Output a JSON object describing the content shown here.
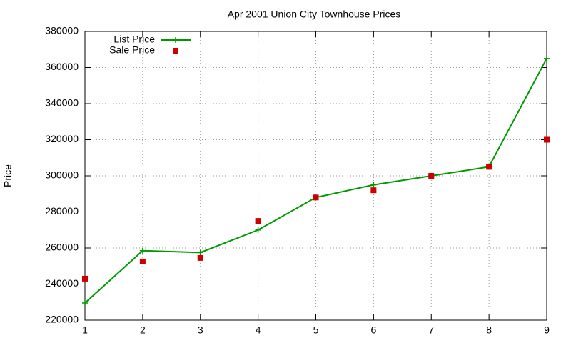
{
  "chart_data": {
    "type": "line",
    "title": "Apr 2001 Union City Townhouse Prices",
    "y_label": "Price",
    "x": [
      1,
      2,
      3,
      4,
      5,
      6,
      7,
      8,
      9
    ],
    "series": [
      {
        "name": "List Price",
        "color": "#009900",
        "mode": "lines+markers",
        "values": [
          229500,
          258500,
          257500,
          270000,
          288000,
          295000,
          300000,
          305000,
          365000
        ]
      },
      {
        "name": "Sale Price",
        "color": "#cc0000",
        "mode": "markers",
        "values": [
          243000,
          252500,
          254500,
          275000,
          288000,
          292000,
          300000,
          305000,
          320000
        ]
      }
    ],
    "xlim": [
      1,
      9
    ],
    "xticks": [
      1,
      2,
      3,
      4,
      5,
      6,
      7,
      8,
      9
    ],
    "ylim": [
      220000,
      380000
    ],
    "yticks": [
      220000,
      240000,
      260000,
      280000,
      300000,
      320000,
      340000,
      360000,
      380000
    ],
    "grid": true,
    "legend": "top-left"
  }
}
